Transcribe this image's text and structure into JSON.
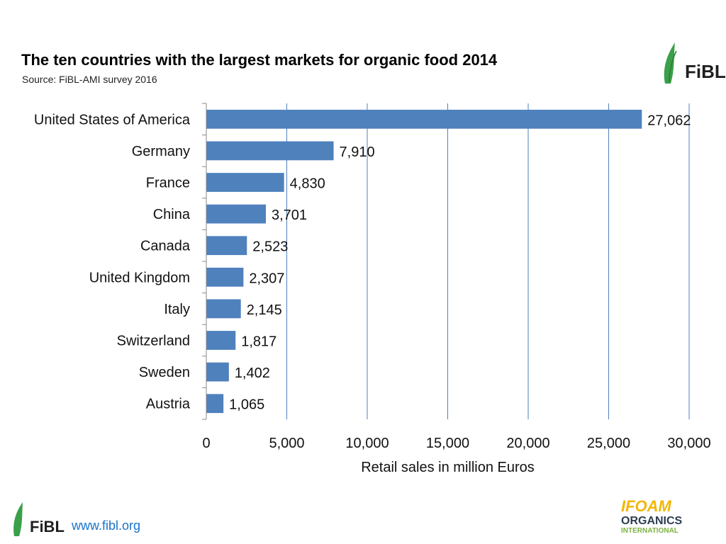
{
  "header": {
    "title": "The ten countries with the largest markets for organic food  2014",
    "subtitle": "Source: FiBL-AMI survey 2016"
  },
  "logos": {
    "fibl_wordmark": "FiBL",
    "ifoam_line1": "IFOAM",
    "ifoam_line2": "ORGANICS",
    "ifoam_line3": "INTERNATIONAL"
  },
  "footer": {
    "url": "www.fibl.org"
  },
  "colors": {
    "bar": "#4f81bd",
    "grid": "#4f81bd",
    "fibl_green": "#3aa04a",
    "ifoam_yellow": "#f2b705",
    "ifoam_green": "#7bb341"
  },
  "chart_data": {
    "type": "bar",
    "orientation": "horizontal",
    "title": "The ten countries with the largest markets for organic food  2014",
    "xlabel": "Retail sales in million Euros",
    "ylabel": "",
    "xlim": [
      0,
      30000
    ],
    "xticks": [
      0,
      5000,
      10000,
      15000,
      20000,
      25000,
      30000
    ],
    "xtick_labels": [
      "0",
      "5,000",
      "10,000",
      "15,000",
      "20,000",
      "25,000",
      "30,000"
    ],
    "grid": "vertical",
    "categories": [
      "United States of America",
      "Germany",
      "France",
      "China",
      "Canada",
      "United Kingdom",
      "Italy",
      "Switzerland",
      "Sweden",
      "Austria"
    ],
    "values": [
      27062,
      7910,
      4830,
      3701,
      2523,
      2307,
      2145,
      1817,
      1402,
      1065
    ],
    "value_labels": [
      "27,062",
      "7,910",
      "4,830",
      "3,701",
      "2,523",
      "2,307",
      "2,145",
      "1,817",
      "1,402",
      "1,065"
    ]
  }
}
